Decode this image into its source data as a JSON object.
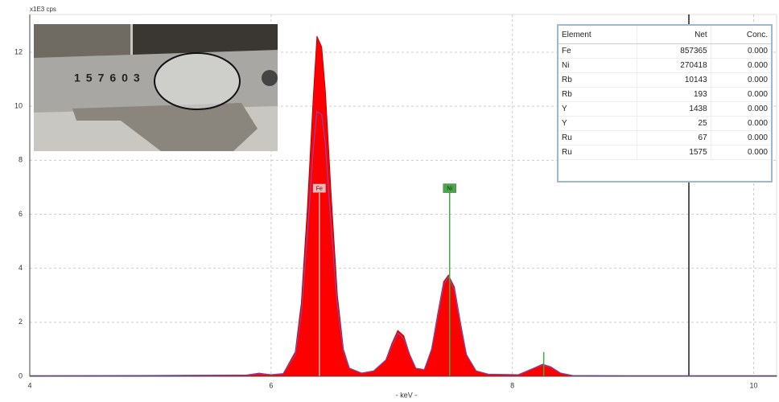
{
  "chart_data": {
    "type": "spectrum",
    "ylabel": "x1E3 cps",
    "xlabel": "- keV -",
    "xlim": [
      4,
      10.19
    ],
    "ylim": [
      0,
      13.4
    ],
    "xticks": [
      4,
      6,
      8,
      10
    ],
    "yticks": [
      0,
      2,
      4,
      6,
      8,
      10,
      12
    ],
    "grid": true,
    "x": [
      4.0,
      5.0,
      5.8,
      5.9,
      6.0,
      6.1,
      6.2,
      6.25,
      6.3,
      6.35,
      6.38,
      6.42,
      6.45,
      6.5,
      6.55,
      6.6,
      6.65,
      6.75,
      6.85,
      6.95,
      7.0,
      7.05,
      7.1,
      7.15,
      7.2,
      7.27,
      7.33,
      7.38,
      7.43,
      7.47,
      7.52,
      7.57,
      7.62,
      7.7,
      7.8,
      8.05,
      8.15,
      8.25,
      8.32,
      8.4,
      8.5,
      9.0,
      10.19
    ],
    "series": [
      {
        "color": "#ff0000",
        "values": [
          0.02,
          0.03,
          0.05,
          0.12,
          0.06,
          0.1,
          0.9,
          2.7,
          6.2,
          10.4,
          12.6,
          12.2,
          10.6,
          6.6,
          3.0,
          1.0,
          0.3,
          0.12,
          0.2,
          0.6,
          1.2,
          1.7,
          1.5,
          0.8,
          0.3,
          0.25,
          1.0,
          2.3,
          3.5,
          3.75,
          3.3,
          2.0,
          0.8,
          0.2,
          0.08,
          0.06,
          0.25,
          0.45,
          0.35,
          0.12,
          0.03,
          0.02,
          0.02
        ]
      },
      {
        "color": "#6a5acd",
        "values": [
          0.02,
          0.03,
          0.05,
          0.1,
          0.06,
          0.1,
          0.8,
          2.3,
          5.2,
          8.4,
          9.8,
          9.7,
          8.6,
          5.4,
          2.6,
          0.9,
          0.3,
          0.12,
          0.2,
          0.6,
          1.1,
          1.6,
          1.4,
          0.8,
          0.3,
          0.25,
          1.0,
          2.2,
          3.4,
          3.7,
          3.2,
          1.9,
          0.8,
          0.2,
          0.08,
          0.06,
          0.25,
          0.42,
          0.33,
          0.12,
          0.03,
          0.02,
          0.02
        ]
      }
    ],
    "markers": [
      {
        "label": "Fe",
        "x": 6.4,
        "height": 6.95,
        "color": "#ffb0b0"
      },
      {
        "label": "Ni",
        "x": 7.48,
        "height": 6.95,
        "color": "#44aa44"
      },
      {
        "label": null,
        "x": 8.26,
        "height": 0.9,
        "color": "#44aa44"
      }
    ]
  },
  "inset_text": "157603",
  "table": {
    "columns": [
      "Element",
      "Net",
      "Conc."
    ],
    "rows": [
      [
        "Fe",
        857365,
        "0.000"
      ],
      [
        "Ni",
        270418,
        "0.000"
      ],
      [
        "Rb",
        10143,
        "0.000"
      ],
      [
        "Rb",
        193,
        "0.000"
      ],
      [
        "Y",
        1438,
        "0.000"
      ],
      [
        "Y",
        25,
        "0.000"
      ],
      [
        "Ru",
        67,
        "0.000"
      ],
      [
        "Ru",
        1575,
        "0.000"
      ]
    ]
  }
}
